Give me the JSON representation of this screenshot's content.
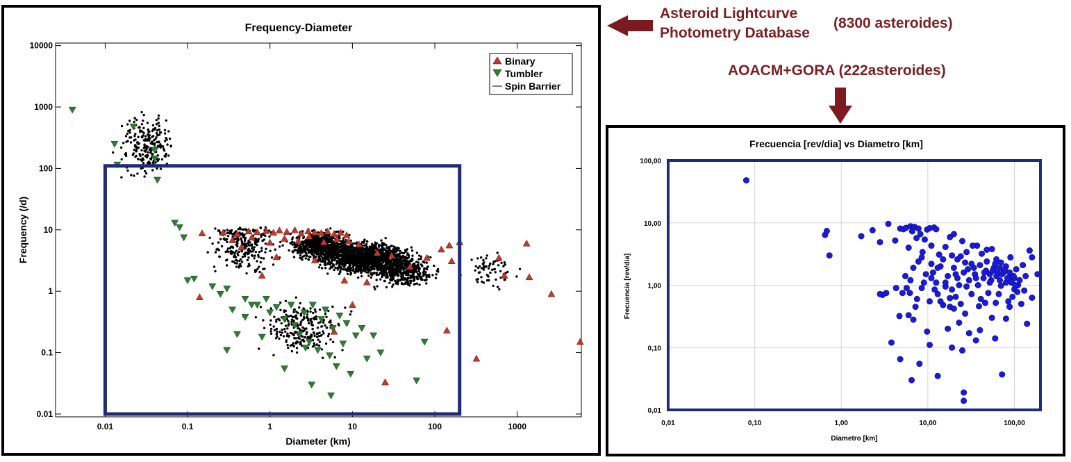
{
  "annotations": {
    "alcdb_line1": "Asteroid Lightcurve",
    "alcdb_line2": "Photometry Database",
    "alcdb_count": "(8300 asteroides)",
    "aoacm": "AOACM+GORA (222asteroides)"
  },
  "colors": {
    "annotation": "#7a1f22",
    "arrow": "#7b1a1f",
    "highlight_box": "#1f2a7a",
    "binary": "#c0392b",
    "tumbler": "#2e7d32",
    "field": "#000000",
    "right_points": "#1a1adb"
  },
  "chart_data": [
    {
      "type": "scatter",
      "title": "Frequency-Diameter",
      "xlabel": "Diameter (km)",
      "ylabel": "Frequency (/d)",
      "xscale": "log",
      "yscale": "log",
      "xlim": [
        0.0025,
        6000
      ],
      "ylim": [
        0.009,
        11000
      ],
      "xticks": [
        "0.01",
        "0.1",
        "1",
        "10",
        "100",
        "1000"
      ],
      "yticks": [
        "0.01",
        "0.1",
        "1",
        "10",
        "100",
        "1000",
        "10000"
      ],
      "legend_position": "top-right",
      "grid": false,
      "highlight_box": {
        "x": [
          0.01,
          200
        ],
        "y": [
          0.01,
          110
        ]
      },
      "series": [
        {
          "name": "Binary",
          "marker": "triangle-up",
          "points": [
            [
              0.15,
              8.8
            ],
            [
              0.27,
              9.0
            ],
            [
              0.4,
              8.5
            ],
            [
              0.55,
              9.5
            ],
            [
              0.7,
              9.2
            ],
            [
              0.9,
              9.6
            ],
            [
              1.1,
              9.0
            ],
            [
              1.3,
              9.8
            ],
            [
              1.6,
              9.3
            ],
            [
              2.0,
              9.9
            ],
            [
              2.4,
              8.7
            ],
            [
              2.9,
              9.5
            ],
            [
              3.5,
              9.1
            ],
            [
              4.2,
              8.9
            ],
            [
              5.0,
              9.4
            ],
            [
              6.0,
              8.6
            ],
            [
              7.2,
              9.0
            ],
            [
              8.5,
              8.2
            ],
            [
              0.35,
              6.8
            ],
            [
              0.6,
              7.5
            ],
            [
              1.0,
              6.2
            ],
            [
              1.5,
              7.2
            ],
            [
              2.2,
              6.6
            ],
            [
              3.0,
              7.8
            ],
            [
              4.5,
              6.3
            ],
            [
              6.5,
              7.0
            ],
            [
              9.0,
              6.5
            ],
            [
              12,
              5.8
            ],
            [
              20,
              4.2
            ],
            [
              30,
              3.8
            ],
            [
              50,
              2.5
            ],
            [
              80,
              3.5
            ],
            [
              120,
              4.8
            ],
            [
              150,
              5.6
            ],
            [
              200,
              6.3
            ],
            [
              160,
              3.1
            ],
            [
              600,
              3.5
            ],
            [
              700,
              1.8
            ],
            [
              1300,
              6.0
            ],
            [
              1400,
              1.7
            ],
            [
              2600,
              0.9
            ],
            [
              5800,
              0.15
            ],
            [
              320,
              0.08
            ],
            [
              140,
              0.23
            ],
            [
              0.14,
              0.8
            ],
            [
              0.8,
              1.8
            ],
            [
              3.5,
              3.2
            ],
            [
              8,
              1.5
            ],
            [
              15,
              1.4
            ],
            [
              6,
              0.22
            ],
            [
              25,
              0.033
            ],
            [
              10,
              0.6
            ],
            [
              0.45,
              5.2
            ],
            [
              1.2,
              3.6
            ]
          ]
        },
        {
          "name": "Tumbler",
          "marker": "triangle-down",
          "points": [
            [
              0.004,
              900
            ],
            [
              0.013,
              250
            ],
            [
              0.014,
              115
            ],
            [
              0.022,
              480
            ],
            [
              0.04,
              200
            ],
            [
              0.04,
              145
            ],
            [
              0.043,
              65
            ],
            [
              0.07,
              13
            ],
            [
              0.08,
              11
            ],
            [
              0.09,
              7.5
            ],
            [
              0.1,
              1.5
            ],
            [
              0.12,
              1.6
            ],
            [
              0.2,
              1.2
            ],
            [
              0.25,
              0.9
            ],
            [
              0.3,
              1.1
            ],
            [
              0.35,
              0.5
            ],
            [
              0.4,
              0.2
            ],
            [
              0.5,
              0.38
            ],
            [
              0.6,
              0.6
            ],
            [
              0.7,
              0.6
            ],
            [
              0.8,
              0.18
            ],
            [
              0.9,
              0.75
            ],
            [
              1.0,
              0.45
            ],
            [
              1.2,
              0.55
            ],
            [
              1.5,
              0.35
            ],
            [
              1.8,
              0.6
            ],
            [
              2.0,
              0.28
            ],
            [
              2.3,
              0.2
            ],
            [
              2.6,
              0.45
            ],
            [
              3.0,
              0.15
            ],
            [
              3.3,
              0.6
            ],
            [
              3.8,
              0.11
            ],
            [
              4.2,
              0.35
            ],
            [
              4.7,
              0.5
            ],
            [
              5.3,
              0.09
            ],
            [
              5.8,
              0.25
            ],
            [
              6.4,
              0.06
            ],
            [
              7.0,
              0.4
            ],
            [
              7.7,
              0.14
            ],
            [
              8.5,
              0.3
            ],
            [
              9.5,
              0.045
            ],
            [
              11,
              0.19
            ],
            [
              13,
              0.25
            ],
            [
              15,
              0.08
            ],
            [
              18,
              0.19
            ],
            [
              22,
              0.1
            ],
            [
              0.3,
              0.11
            ],
            [
              1.5,
              0.055
            ],
            [
              3.2,
              0.03
            ],
            [
              5.5,
              0.02
            ],
            [
              60,
              0.035
            ],
            [
              75,
              0.15
            ],
            [
              0.5,
              0.75
            ],
            [
              2.7,
              0.12
            ]
          ]
        }
      ]
    },
    {
      "type": "scatter",
      "title": "Frecuencia [rev/dia] vs Diametro [km]",
      "xlabel": "Diametro [km]",
      "ylabel": "Frecuencia  [rev/dia]",
      "xscale": "log",
      "yscale": "log",
      "xlim": [
        0.01,
        200
      ],
      "ylim": [
        0.01,
        100
      ],
      "xticks": [
        "0,01",
        "0,10",
        "1,00",
        "10,00",
        "100,00"
      ],
      "yticks": [
        "0,01",
        "0,10",
        "1,00",
        "10,00",
        "100,00"
      ],
      "grid": true,
      "points": [
        [
          0.08,
          48
        ],
        [
          0.65,
          6.4
        ],
        [
          0.68,
          7.4
        ],
        [
          0.73,
          3.0
        ],
        [
          1.7,
          6.1
        ],
        [
          2.3,
          7.6
        ],
        [
          2.8,
          4.9
        ],
        [
          3.5,
          9.6
        ],
        [
          4.2,
          5.2
        ],
        [
          4.8,
          8.1
        ],
        [
          5.2,
          7.9
        ],
        [
          5.6,
          8.3
        ],
        [
          6.0,
          4.0
        ],
        [
          6.3,
          8.8
        ],
        [
          6.6,
          7.3
        ],
        [
          7.0,
          8.6
        ],
        [
          7.4,
          5.7
        ],
        [
          7.8,
          8.1
        ],
        [
          8.2,
          6.6
        ],
        [
          8.7,
          3.4
        ],
        [
          9.2,
          5.4
        ],
        [
          9.8,
          7.8
        ],
        [
          10.5,
          8.2
        ],
        [
          11,
          4.3
        ],
        [
          11.8,
          8.4
        ],
        [
          12.5,
          7.9
        ],
        [
          13.5,
          3.1
        ],
        [
          16,
          4.1
        ],
        [
          18,
          5.9
        ],
        [
          20,
          6.6
        ],
        [
          22,
          2.6
        ],
        [
          25,
          5.1
        ],
        [
          28,
          3.4
        ],
        [
          32,
          2.2
        ],
        [
          37,
          4.3
        ],
        [
          42,
          3.2
        ],
        [
          48,
          3.7
        ],
        [
          55,
          3.8
        ],
        [
          62,
          2.6
        ],
        [
          70,
          2.3
        ],
        [
          80,
          2.0
        ],
        [
          90,
          2.8
        ],
        [
          105,
          1.8
        ],
        [
          125,
          2.1
        ],
        [
          150,
          3.6
        ],
        [
          160,
          2.8
        ],
        [
          185,
          1.5
        ],
        [
          160,
          0.63
        ],
        [
          140,
          0.24
        ],
        [
          100,
          0.86
        ],
        [
          90,
          1.3
        ],
        [
          85,
          0.55
        ],
        [
          80,
          1.1
        ],
        [
          75,
          1.6
        ],
        [
          70,
          0.98
        ],
        [
          66,
          0.72
        ],
        [
          62,
          1.4
        ],
        [
          58,
          1.9
        ],
        [
          54,
          1.2
        ],
        [
          50,
          0.75
        ],
        [
          47,
          1.7
        ],
        [
          44,
          1.3
        ],
        [
          41,
          0.6
        ],
        [
          38,
          1.0
        ],
        [
          35,
          1.5
        ],
        [
          32,
          0.72
        ],
        [
          30,
          1.2
        ],
        [
          28,
          0.95
        ],
        [
          26,
          1.6
        ],
        [
          24,
          0.5
        ],
        [
          22,
          1.3
        ],
        [
          21,
          0.65
        ],
        [
          20,
          1.9
        ],
        [
          19,
          0.85
        ],
        [
          18,
          0.45
        ],
        [
          17,
          1.4
        ],
        [
          16,
          0.95
        ],
        [
          15,
          0.48
        ],
        [
          14,
          2.0
        ],
        [
          13,
          0.72
        ],
        [
          12.5,
          1.1
        ],
        [
          11.5,
          1.6
        ],
        [
          10.5,
          0.55
        ],
        [
          9.5,
          1.5
        ],
        [
          8.5,
          0.9
        ],
        [
          7.8,
          2.4
        ],
        [
          7.2,
          0.45
        ],
        [
          6.8,
          1.9
        ],
        [
          6.3,
          1.2
        ],
        [
          6.0,
          0.33
        ],
        [
          5.5,
          1.4
        ],
        [
          5.1,
          0.75
        ],
        [
          4.7,
          0.32
        ],
        [
          4.3,
          0.9
        ],
        [
          3.8,
          0.12
        ],
        [
          3.3,
          0.75
        ],
        [
          3.0,
          0.7
        ],
        [
          2.8,
          0.72
        ],
        [
          4.8,
          0.065
        ],
        [
          6.5,
          0.03
        ],
        [
          8.0,
          0.055
        ],
        [
          9.8,
          0.18
        ],
        [
          10.5,
          0.11
        ],
        [
          13,
          0.035
        ],
        [
          17,
          0.2
        ],
        [
          19,
          0.1
        ],
        [
          23,
          0.25
        ],
        [
          25,
          0.09
        ],
        [
          26,
          0.014
        ],
        [
          26,
          0.019
        ],
        [
          30,
          0.17
        ],
        [
          36,
          0.13
        ],
        [
          40,
          0.19
        ],
        [
          55,
          0.3
        ],
        [
          60,
          0.14
        ],
        [
          72,
          0.037
        ],
        [
          80,
          0.29
        ],
        [
          110,
          1.0
        ],
        [
          120,
          0.5
        ],
        [
          135,
          1.4
        ],
        [
          100,
          1.3
        ],
        [
          95,
          0.65
        ],
        [
          88,
          0.45
        ],
        [
          68,
          1.9
        ],
        [
          61,
          0.52
        ],
        [
          52,
          1.1
        ],
        [
          46,
          0.52
        ],
        [
          39,
          0.46
        ],
        [
          34,
          1.9
        ],
        [
          27,
          0.35
        ],
        [
          23,
          1.0
        ],
        [
          20,
          0.42
        ],
        [
          18,
          0.62
        ],
        [
          16,
          1.1
        ],
        [
          14,
          0.55
        ],
        [
          12,
          0.85
        ],
        [
          11,
          1.3
        ],
        [
          9,
          1.1
        ],
        [
          7.5,
          0.6
        ],
        [
          6.8,
          0.28
        ],
        [
          6.2,
          0.75
        ],
        [
          5.7,
          0.9
        ],
        [
          8.5,
          2.8
        ],
        [
          11,
          2.2
        ],
        [
          13,
          1.9
        ],
        [
          15,
          2.6
        ],
        [
          19,
          3.0
        ],
        [
          21,
          1.5
        ],
        [
          24,
          2.9
        ],
        [
          27,
          2.3
        ],
        [
          29,
          1.8
        ],
        [
          33,
          4.3
        ],
        [
          36,
          1.3
        ],
        [
          40,
          2.1
        ],
        [
          45,
          1.6
        ],
        [
          48,
          2.4
        ],
        [
          52,
          1.5
        ],
        [
          56,
          1.7
        ],
        [
          60,
          2.2
        ],
        [
          64,
          1.6
        ],
        [
          68,
          1.2
        ],
        [
          72,
          1.5
        ],
        [
          78,
          1.7
        ],
        [
          83,
          1.3
        ],
        [
          88,
          1.6
        ],
        [
          93,
          1.1
        ],
        [
          98,
          1.4
        ],
        [
          102,
          1.0
        ],
        [
          108,
          0.78
        ],
        [
          115,
          1.2
        ],
        [
          130,
          0.82
        ]
      ]
    }
  ]
}
